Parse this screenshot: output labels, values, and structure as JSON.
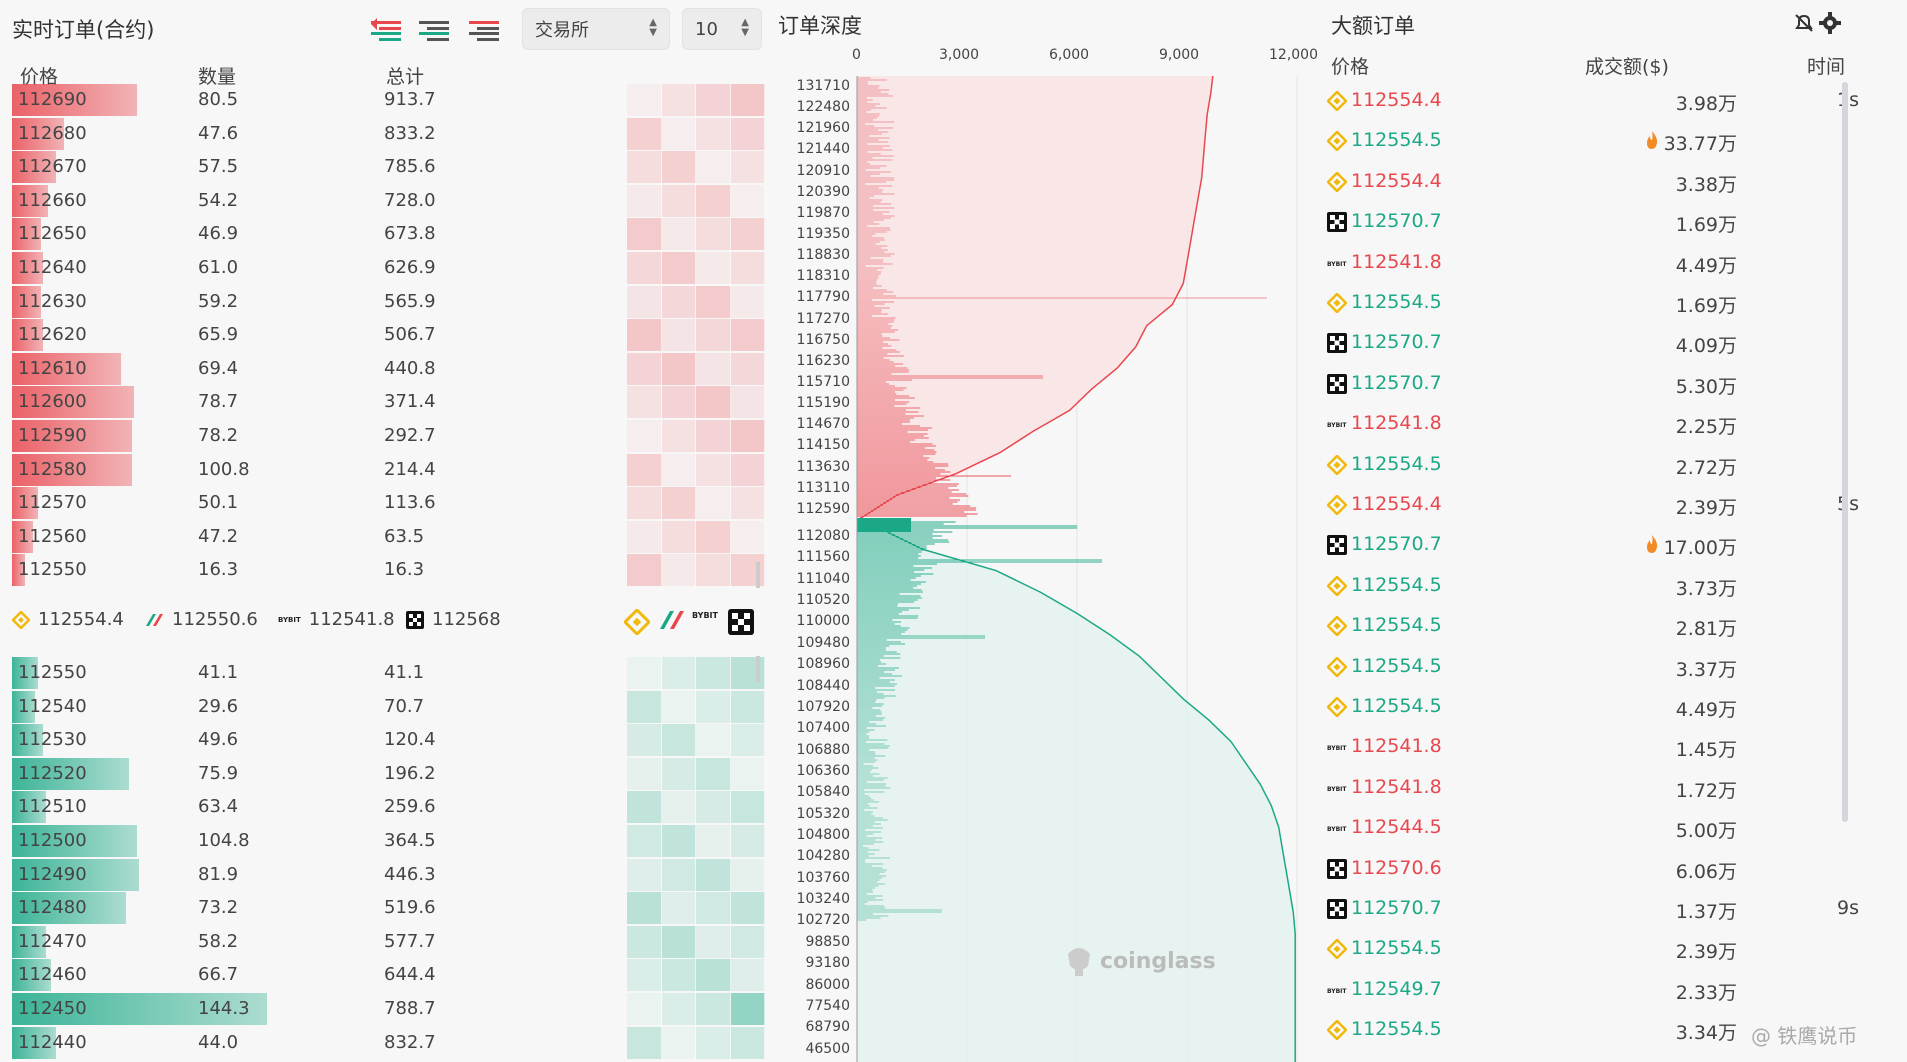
{
  "orderbook": {
    "title": "实时订单(合约)",
    "exchange_select": "交易所",
    "depth_select": "10",
    "headers": {
      "price": "价格",
      "qty": "数量",
      "total": "总计"
    },
    "asks": [
      {
        "price": "112690",
        "qty": "80.5",
        "total": "913.7",
        "w": 0.48
      },
      {
        "price": "112680",
        "qty": "47.6",
        "total": "833.2",
        "w": 0.2
      },
      {
        "price": "112670",
        "qty": "57.5",
        "total": "785.6",
        "w": 0.17
      },
      {
        "price": "112660",
        "qty": "54.2",
        "total": "728.0",
        "w": 0.14
      },
      {
        "price": "112650",
        "qty": "46.9",
        "total": "673.8",
        "w": 0.11
      },
      {
        "price": "112640",
        "qty": "61.0",
        "total": "626.9",
        "w": 0.12
      },
      {
        "price": "112630",
        "qty": "59.2",
        "total": "565.9",
        "w": 0.11
      },
      {
        "price": "112620",
        "qty": "65.9",
        "total": "506.7",
        "w": 0.12
      },
      {
        "price": "112610",
        "qty": "69.4",
        "total": "440.8",
        "w": 0.42
      },
      {
        "price": "112600",
        "qty": "78.7",
        "total": "371.4",
        "w": 0.47
      },
      {
        "price": "112590",
        "qty": "78.2",
        "total": "292.7",
        "w": 0.46
      },
      {
        "price": "112580",
        "qty": "100.8",
        "total": "214.4",
        "w": 0.46
      },
      {
        "price": "112570",
        "qty": "50.1",
        "total": "113.6",
        "w": 0.1
      },
      {
        "price": "112560",
        "qty": "47.2",
        "total": "63.5",
        "w": 0.08
      },
      {
        "price": "112550",
        "qty": "16.3",
        "total": "16.3",
        "w": 0.05
      }
    ],
    "bids": [
      {
        "price": "112550",
        "qty": "41.1",
        "total": "41.1",
        "w": 0.1
      },
      {
        "price": "112540",
        "qty": "29.6",
        "total": "70.7",
        "w": 0.09
      },
      {
        "price": "112530",
        "qty": "49.6",
        "total": "120.4",
        "w": 0.12
      },
      {
        "price": "112520",
        "qty": "75.9",
        "total": "196.2",
        "w": 0.45
      },
      {
        "price": "112510",
        "qty": "63.4",
        "total": "259.6",
        "w": 0.13
      },
      {
        "price": "112500",
        "qty": "104.8",
        "total": "364.5",
        "w": 0.48
      },
      {
        "price": "112490",
        "qty": "81.9",
        "total": "446.3",
        "w": 0.49
      },
      {
        "price": "112480",
        "qty": "73.2",
        "total": "519.6",
        "w": 0.44
      },
      {
        "price": "112470",
        "qty": "58.2",
        "total": "577.7",
        "w": 0.13
      },
      {
        "price": "112460",
        "qty": "66.7",
        "total": "644.4",
        "w": 0.15
      },
      {
        "price": "112450",
        "qty": "144.3",
        "total": "788.7",
        "w": 0.98
      },
      {
        "price": "112440",
        "qty": "44.0",
        "total": "832.7",
        "w": 0.17
      }
    ],
    "exchange_prices": [
      {
        "exchange": "binance",
        "price": "112554.4"
      },
      {
        "exchange": "bitget",
        "price": "112550.6"
      },
      {
        "exchange": "bybit",
        "price": "112541.8"
      },
      {
        "exchange": "okx",
        "price": "112568"
      }
    ]
  },
  "depth": {
    "title": "订单深度",
    "x_ticks": [
      "0",
      "3,000",
      "6,000",
      "9,000",
      "12,000"
    ],
    "ask_levels": [
      "131710",
      "122480",
      "121960",
      "121440",
      "120910",
      "120390",
      "119870",
      "119350",
      "118830",
      "118310",
      "117790",
      "117270",
      "116750",
      "116230",
      "115710",
      "115190",
      "114670",
      "114150",
      "113630",
      "113110",
      "112590"
    ],
    "bid_levels": [
      "112080",
      "111560",
      "111040",
      "110520",
      "110000",
      "109480",
      "108960",
      "108440",
      "107920",
      "107400",
      "106880",
      "106360",
      "105840",
      "105320",
      "104800",
      "104280",
      "103760",
      "103240",
      "102720",
      "98850",
      "93180",
      "86000",
      "77540",
      "68790",
      "46500"
    ],
    "watermark": "coinglass"
  },
  "chart_data": {
    "type": "area",
    "title": "订单深度",
    "xlim": [
      0,
      12000
    ],
    "series": [
      {
        "side": "ask",
        "x_levels": [
          "112590",
          "113110",
          "113630",
          "114150",
          "114670",
          "115190",
          "115710",
          "116230",
          "116750",
          "117270",
          "117790",
          "118310",
          "118830",
          "119350",
          "119870",
          "120390",
          "120910",
          "121440",
          "121960",
          "122480",
          "131710"
        ],
        "values": [
          200,
          1100,
          2700,
          3900,
          4800,
          5800,
          6400,
          7100,
          7600,
          7900,
          8600,
          8900,
          9000,
          9100,
          9200,
          9300,
          9400,
          9450,
          9500,
          9550,
          9650
        ]
      },
      {
        "side": "bid",
        "x_levels": [
          "112080",
          "111560",
          "111040",
          "110520",
          "110000",
          "109480",
          "108960",
          "108440",
          "107920",
          "107400",
          "106880",
          "106360",
          "105840",
          "105320",
          "104800",
          "104280",
          "103760",
          "103240",
          "102720",
          "98850",
          "93180",
          "86000",
          "77540",
          "68790",
          "46500"
        ],
        "values": [
          600,
          1800,
          3800,
          5000,
          6000,
          6900,
          7700,
          8300,
          8900,
          9600,
          10200,
          10600,
          11000,
          11300,
          11500,
          11600,
          11700,
          11800,
          11900,
          11950,
          11950,
          11950,
          11950,
          11950,
          11950
        ]
      }
    ]
  },
  "large_orders": {
    "title": "大额订单",
    "headers": {
      "price": "价格",
      "amount": "成交额($)",
      "time": "时间"
    },
    "rows": [
      {
        "ex": "binance",
        "price": "112554.4",
        "side": "red",
        "amount": "3.98万",
        "fire": false,
        "time": "1s"
      },
      {
        "ex": "binance",
        "price": "112554.5",
        "side": "green",
        "amount": "33.77万",
        "fire": true,
        "time": ""
      },
      {
        "ex": "binance",
        "price": "112554.4",
        "side": "red",
        "amount": "3.38万",
        "fire": false,
        "time": ""
      },
      {
        "ex": "okx",
        "price": "112570.7",
        "side": "green",
        "amount": "1.69万",
        "fire": false,
        "time": ""
      },
      {
        "ex": "bybit",
        "price": "112541.8",
        "side": "red",
        "amount": "4.49万",
        "fire": false,
        "time": ""
      },
      {
        "ex": "binance",
        "price": "112554.5",
        "side": "green",
        "amount": "1.69万",
        "fire": false,
        "time": ""
      },
      {
        "ex": "okx",
        "price": "112570.7",
        "side": "green",
        "amount": "4.09万",
        "fire": false,
        "time": ""
      },
      {
        "ex": "okx",
        "price": "112570.7",
        "side": "green",
        "amount": "5.30万",
        "fire": false,
        "time": ""
      },
      {
        "ex": "bybit",
        "price": "112541.8",
        "side": "red",
        "amount": "2.25万",
        "fire": false,
        "time": ""
      },
      {
        "ex": "binance",
        "price": "112554.5",
        "side": "green",
        "amount": "2.72万",
        "fire": false,
        "time": ""
      },
      {
        "ex": "binance",
        "price": "112554.4",
        "side": "red",
        "amount": "2.39万",
        "fire": false,
        "time": "5s"
      },
      {
        "ex": "okx",
        "price": "112570.7",
        "side": "green",
        "amount": "17.00万",
        "fire": true,
        "time": ""
      },
      {
        "ex": "binance",
        "price": "112554.5",
        "side": "green",
        "amount": "3.73万",
        "fire": false,
        "time": ""
      },
      {
        "ex": "binance",
        "price": "112554.5",
        "side": "green",
        "amount": "2.81万",
        "fire": false,
        "time": ""
      },
      {
        "ex": "binance",
        "price": "112554.5",
        "side": "green",
        "amount": "3.37万",
        "fire": false,
        "time": ""
      },
      {
        "ex": "binance",
        "price": "112554.5",
        "side": "green",
        "amount": "4.49万",
        "fire": false,
        "time": ""
      },
      {
        "ex": "bybit",
        "price": "112541.8",
        "side": "red",
        "amount": "1.45万",
        "fire": false,
        "time": ""
      },
      {
        "ex": "bybit",
        "price": "112541.8",
        "side": "red",
        "amount": "1.72万",
        "fire": false,
        "time": ""
      },
      {
        "ex": "bybit",
        "price": "112544.5",
        "side": "red",
        "amount": "5.00万",
        "fire": false,
        "time": ""
      },
      {
        "ex": "okx",
        "price": "112570.6",
        "side": "red",
        "amount": "6.06万",
        "fire": false,
        "time": ""
      },
      {
        "ex": "okx",
        "price": "112570.7",
        "side": "green",
        "amount": "1.37万",
        "fire": false,
        "time": "9s"
      },
      {
        "ex": "binance",
        "price": "112554.5",
        "side": "green",
        "amount": "2.39万",
        "fire": false,
        "time": ""
      },
      {
        "ex": "bybit",
        "price": "112549.7",
        "side": "green",
        "amount": "2.33万",
        "fire": false,
        "time": ""
      },
      {
        "ex": "binance",
        "price": "112554.5",
        "side": "green",
        "amount": "3.34万",
        "fire": false,
        "time": ""
      }
    ],
    "footer_watermark": "@ 铁鹰说币"
  },
  "colors": {
    "ask": "#e8474e",
    "bid": "#1ba886",
    "ask_fill": "#f9e4e5",
    "bid_fill": "#e3f2ee"
  }
}
